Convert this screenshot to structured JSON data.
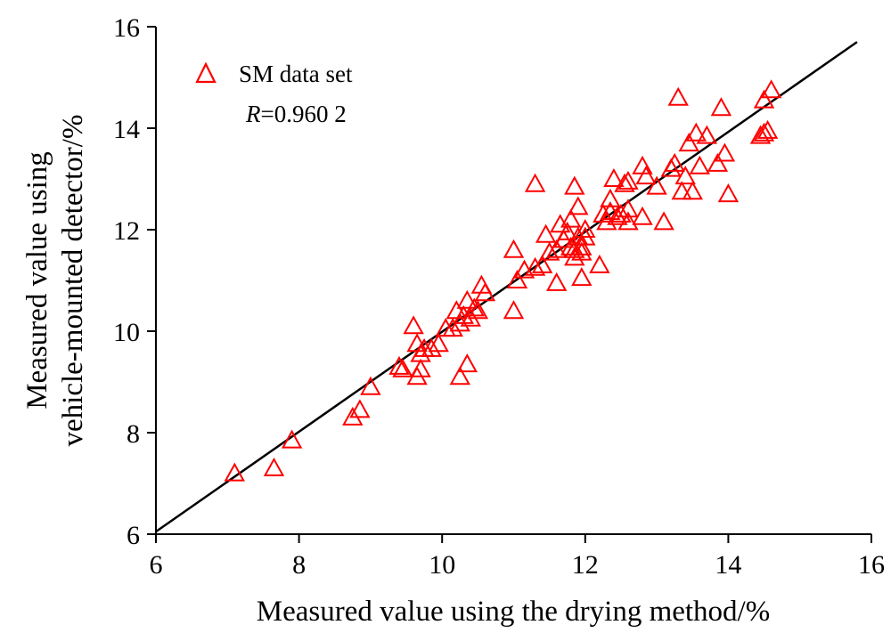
{
  "chart_data": {
    "type": "scatter",
    "xlabel": "Measured value using the drying method/%",
    "ylabel_lines": [
      "Measured value using",
      "vehicle-mounted detector/%"
    ],
    "xlim": [
      6,
      16
    ],
    "ylim": [
      6,
      16
    ],
    "xticks": [
      6,
      8,
      10,
      12,
      14,
      16
    ],
    "yticks": [
      6,
      8,
      10,
      12,
      14,
      16
    ],
    "grid": false,
    "legend": {
      "label": "SM data set",
      "position": "top-left",
      "marker": "open-triangle",
      "color": "#ff0000"
    },
    "annotation": {
      "prefix": "R",
      "value": "=0.960 2"
    },
    "fit_line": {
      "x": [
        6,
        15.8
      ],
      "y": [
        6.05,
        15.7
      ],
      "color": "#000000"
    },
    "series": [
      {
        "name": "SM data set",
        "marker": "open-triangle",
        "color": "#ff0000",
        "points": [
          [
            7.1,
            7.2
          ],
          [
            7.65,
            7.3
          ],
          [
            7.9,
            7.85
          ],
          [
            8.75,
            8.3
          ],
          [
            8.85,
            8.45
          ],
          [
            9.0,
            8.9
          ],
          [
            9.4,
            9.3
          ],
          [
            9.45,
            9.25
          ],
          [
            9.6,
            10.1
          ],
          [
            9.65,
            9.75
          ],
          [
            9.65,
            9.1
          ],
          [
            9.7,
            9.25
          ],
          [
            9.7,
            9.55
          ],
          [
            9.75,
            9.65
          ],
          [
            9.85,
            9.65
          ],
          [
            9.95,
            9.75
          ],
          [
            10.05,
            10.05
          ],
          [
            10.15,
            10.05
          ],
          [
            10.2,
            10.4
          ],
          [
            10.25,
            10.15
          ],
          [
            10.25,
            9.1
          ],
          [
            10.3,
            10.3
          ],
          [
            10.35,
            10.6
          ],
          [
            10.35,
            9.35
          ],
          [
            10.4,
            10.25
          ],
          [
            10.45,
            10.45
          ],
          [
            10.5,
            10.4
          ],
          [
            10.55,
            10.9
          ],
          [
            10.6,
            10.75
          ],
          [
            11.0,
            11.6
          ],
          [
            11.0,
            10.4
          ],
          [
            11.05,
            11.0
          ],
          [
            11.15,
            11.2
          ],
          [
            11.3,
            12.9
          ],
          [
            11.3,
            11.25
          ],
          [
            11.4,
            11.3
          ],
          [
            11.45,
            11.9
          ],
          [
            11.5,
            11.55
          ],
          [
            11.6,
            11.6
          ],
          [
            11.6,
            10.95
          ],
          [
            11.65,
            12.1
          ],
          [
            11.7,
            11.8
          ],
          [
            11.75,
            11.95
          ],
          [
            11.8,
            12.2
          ],
          [
            11.8,
            11.65
          ],
          [
            11.85,
            12.85
          ],
          [
            11.85,
            11.45
          ],
          [
            11.85,
            11.6
          ],
          [
            11.9,
            12.45
          ],
          [
            11.9,
            11.85
          ],
          [
            11.95,
            11.55
          ],
          [
            11.95,
            11.05
          ],
          [
            11.95,
            11.65
          ],
          [
            12.0,
            12.0
          ],
          [
            12.0,
            11.85
          ],
          [
            12.2,
            11.3
          ],
          [
            12.25,
            12.3
          ],
          [
            12.3,
            12.15
          ],
          [
            12.35,
            12.35
          ],
          [
            12.35,
            12.6
          ],
          [
            12.4,
            13.0
          ],
          [
            12.45,
            12.25
          ],
          [
            12.5,
            12.3
          ],
          [
            12.55,
            12.9
          ],
          [
            12.6,
            12.95
          ],
          [
            12.6,
            12.4
          ],
          [
            12.6,
            12.15
          ],
          [
            12.8,
            12.25
          ],
          [
            12.8,
            13.25
          ],
          [
            12.85,
            13.05
          ],
          [
            13.0,
            12.85
          ],
          [
            13.1,
            12.15
          ],
          [
            13.2,
            13.2
          ],
          [
            13.25,
            13.3
          ],
          [
            13.3,
            14.6
          ],
          [
            13.35,
            12.75
          ],
          [
            13.4,
            13.05
          ],
          [
            13.45,
            13.7
          ],
          [
            13.5,
            12.75
          ],
          [
            13.55,
            13.9
          ],
          [
            13.6,
            13.25
          ],
          [
            13.7,
            13.85
          ],
          [
            13.85,
            13.3
          ],
          [
            13.9,
            14.4
          ],
          [
            13.95,
            13.5
          ],
          [
            14.0,
            12.7
          ],
          [
            14.45,
            13.85
          ],
          [
            14.5,
            13.9
          ],
          [
            14.5,
            14.55
          ],
          [
            14.55,
            13.95
          ],
          [
            14.6,
            14.75
          ]
        ]
      }
    ]
  }
}
